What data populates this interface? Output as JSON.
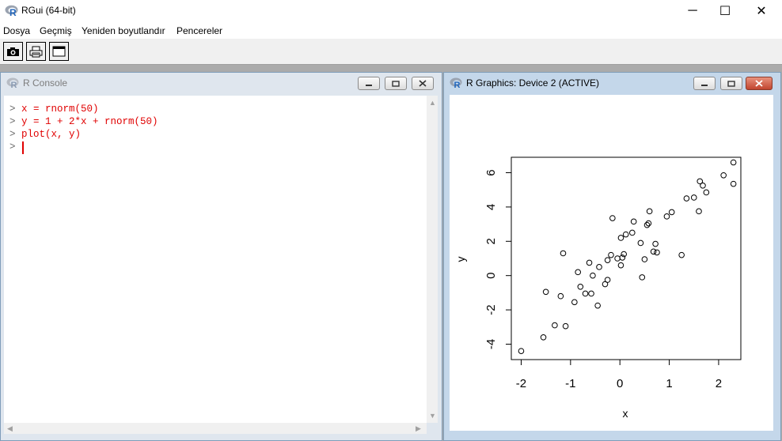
{
  "app": {
    "title": "RGui (64-bit)",
    "window_controls": {
      "minimize": "─",
      "maximize": "☐",
      "close": "✕"
    }
  },
  "menu": {
    "items": [
      "Dosya",
      "Geçmiş",
      "Yeniden boyutlandır",
      "Pencereler"
    ]
  },
  "toolbar": {
    "buttons": [
      "camera-icon",
      "printer-icon",
      "window-icon"
    ]
  },
  "console": {
    "title": "R Console",
    "lines": [
      {
        "prompt": ">",
        "code": "x = rnorm(50)"
      },
      {
        "prompt": ">",
        "code": "y = 1 + 2*x + rnorm(50)"
      },
      {
        "prompt": ">",
        "code": "plot(x, y)"
      },
      {
        "prompt": ">",
        "code": ""
      }
    ],
    "text_color": "#e00000"
  },
  "graphics": {
    "title": "R Graphics: Device 2 (ACTIVE)"
  },
  "chart_data": {
    "type": "scatter",
    "title": "",
    "xlabel": "x",
    "ylabel": "y",
    "xlim": [
      -2.2,
      2.45
    ],
    "ylim": [
      -4.9,
      6.9
    ],
    "xticks": [
      -2,
      -1,
      0,
      1,
      2
    ],
    "yticks": [
      -4,
      -2,
      0,
      2,
      4,
      6
    ],
    "grid": false,
    "points": [
      [
        -2.0,
        -4.4
      ],
      [
        -1.55,
        -3.6
      ],
      [
        -1.5,
        -0.95
      ],
      [
        -1.32,
        -2.9
      ],
      [
        -1.2,
        -1.2
      ],
      [
        -1.15,
        1.3
      ],
      [
        -1.1,
        -2.95
      ],
      [
        -0.92,
        -1.55
      ],
      [
        -0.85,
        0.2
      ],
      [
        -0.8,
        -0.65
      ],
      [
        -0.7,
        -1.05
      ],
      [
        -0.62,
        0.75
      ],
      [
        -0.58,
        -1.05
      ],
      [
        -0.55,
        0.0
      ],
      [
        -0.45,
        -1.75
      ],
      [
        -0.42,
        0.5
      ],
      [
        -0.3,
        -0.5
      ],
      [
        -0.25,
        -0.25
      ],
      [
        -0.25,
        0.9
      ],
      [
        -0.18,
        1.2
      ],
      [
        -0.15,
        3.35
      ],
      [
        -0.05,
        1.0
      ],
      [
        0.02,
        0.6
      ],
      [
        0.02,
        2.2
      ],
      [
        0.05,
        1.05
      ],
      [
        0.08,
        1.25
      ],
      [
        0.12,
        2.4
      ],
      [
        0.25,
        2.5
      ],
      [
        0.28,
        3.15
      ],
      [
        0.42,
        1.9
      ],
      [
        0.45,
        -0.1
      ],
      [
        0.5,
        0.95
      ],
      [
        0.55,
        2.95
      ],
      [
        0.58,
        3.05
      ],
      [
        0.6,
        3.75
      ],
      [
        0.68,
        1.4
      ],
      [
        0.72,
        1.85
      ],
      [
        0.75,
        1.35
      ],
      [
        0.95,
        3.45
      ],
      [
        1.05,
        3.7
      ],
      [
        1.25,
        1.2
      ],
      [
        1.35,
        4.5
      ],
      [
        1.5,
        4.55
      ],
      [
        1.6,
        3.75
      ],
      [
        1.62,
        5.5
      ],
      [
        1.68,
        5.25
      ],
      [
        1.75,
        4.85
      ],
      [
        2.1,
        5.85
      ],
      [
        2.3,
        5.35
      ],
      [
        2.3,
        6.6
      ]
    ]
  }
}
